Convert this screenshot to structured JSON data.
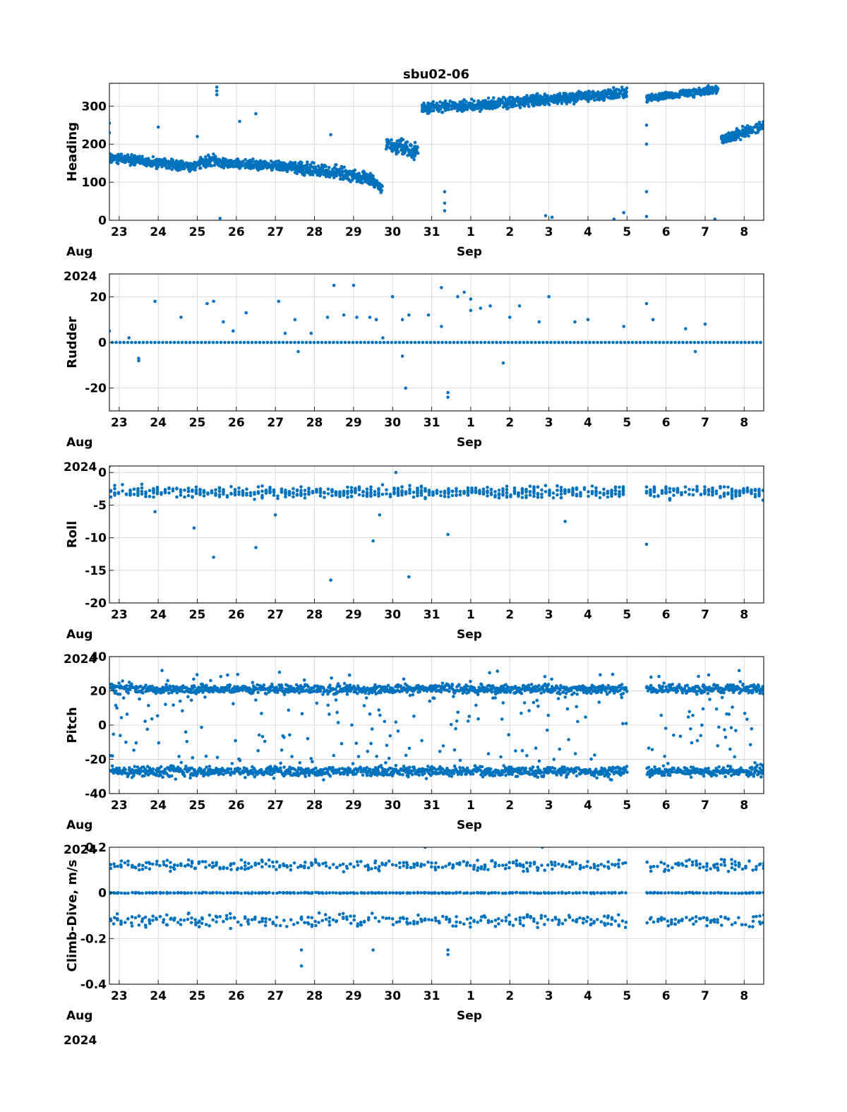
{
  "figure_title": "sbu02-06",
  "marker_color": "#0072BD",
  "x_axis": {
    "tick_labels": [
      "23",
      "24",
      "25",
      "26",
      "27",
      "28",
      "29",
      "30",
      "31",
      "1",
      "2",
      "3",
      "4",
      "5",
      "6",
      "7",
      "8"
    ],
    "month_left": "Aug",
    "month_mid": "Sep",
    "year": "2024"
  },
  "chart_data": [
    {
      "type": "scatter",
      "title": "sbu02-06",
      "ylabel": "Heading",
      "ylim": [
        0,
        360
      ],
      "yticks": [
        "0",
        "100",
        "200",
        "300"
      ],
      "xlim": [
        "2024-08-22T18:00",
        "2024-09-08T12:00"
      ],
      "grid": true,
      "series": [
        {
          "segments": [
            {
              "x": [
                "2024-08-22T18:00",
                "2024-08-25T00:00"
              ],
              "y": [
                165,
                140
              ],
              "spread": 18
            },
            {
              "x": [
                "2024-08-25T00:00",
                "2024-08-25T12:00"
              ],
              "y": [
                150,
                160
              ],
              "spread": 20
            },
            {
              "x": [
                "2024-08-25T12:00",
                "2024-08-27T12:00"
              ],
              "y": [
                150,
                140
              ],
              "spread": 18
            },
            {
              "x": [
                "2024-08-27T12:00",
                "2024-08-29T12:00"
              ],
              "y": [
                140,
                110
              ],
              "spread": 25
            },
            {
              "x": [
                "2024-08-29T08:00",
                "2024-08-29T18:00"
              ],
              "y": [
                105,
                85
              ],
              "spread": 20
            },
            {
              "x": [
                "2024-08-29T20:00",
                "2024-08-30T16:00"
              ],
              "y": [
                200,
                180
              ],
              "spread": 30
            },
            {
              "x": [
                "2024-08-30T18:00",
                "2024-09-01T12:00"
              ],
              "y": [
                295,
                305
              ],
              "spread": 20
            },
            {
              "x": [
                "2024-09-01T12:00",
                "2024-09-05T00:00"
              ],
              "y": [
                305,
                335
              ],
              "spread": 20
            },
            {
              "x": [
                "2024-09-05T12:00",
                "2024-09-07T08:00"
              ],
              "y": [
                320,
                345
              ],
              "spread": 15
            },
            {
              "x": [
                "2024-09-07T10:00",
                "2024-09-08T12:00"
              ],
              "y": [
                210,
                250
              ],
              "spread": 20
            }
          ],
          "outliers": [
            {
              "x": "2024-08-25T12:00",
              "y": 340
            },
            {
              "x": "2024-08-25T12:00",
              "y": 330
            },
            {
              "x": "2024-08-25T12:00",
              "y": 350
            },
            {
              "x": "2024-08-25T14:00",
              "y": 5
            },
            {
              "x": "2024-08-26T02:00",
              "y": 260
            },
            {
              "x": "2024-08-26T12:00",
              "y": 280
            },
            {
              "x": "2024-08-24T00:00",
              "y": 245
            },
            {
              "x": "2024-08-28T10:00",
              "y": 225
            },
            {
              "x": "2024-08-25T00:00",
              "y": 220
            },
            {
              "x": "2024-08-31T08:00",
              "y": 75
            },
            {
              "x": "2024-08-31T08:00",
              "y": 45
            },
            {
              "x": "2024-08-31T08:00",
              "y": 25
            },
            {
              "x": "2024-09-02T22:00",
              "y": 12
            },
            {
              "x": "2024-09-03T02:00",
              "y": 8
            },
            {
              "x": "2024-09-04T16:00",
              "y": 3
            },
            {
              "x": "2024-09-04T22:00",
              "y": 20
            },
            {
              "x": "2024-09-05T12:00",
              "y": 250
            },
            {
              "x": "2024-09-05T12:00",
              "y": 200
            },
            {
              "x": "2024-09-05T12:00",
              "y": 75
            },
            {
              "x": "2024-09-05T12:00",
              "y": 10
            },
            {
              "x": "2024-09-07T06:00",
              "y": 3
            },
            {
              "x": "2024-08-22T18:00",
              "y": 255
            },
            {
              "x": "2024-08-22T18:00",
              "y": 230
            }
          ]
        }
      ]
    },
    {
      "type": "scatter",
      "ylabel": "Rudder",
      "ylim": [
        -30,
        30
      ],
      "yticks": [
        "-20",
        "0",
        "20"
      ],
      "xlim": [
        "2024-08-22T18:00",
        "2024-09-08T12:00"
      ],
      "grid": true,
      "series": [
        {
          "baseline": 0,
          "outliers": [
            {
              "x": "2024-08-22T18:00",
              "y": 5
            },
            {
              "x": "2024-08-23T06:00",
              "y": 2
            },
            {
              "x": "2024-08-23T12:00",
              "y": -7
            },
            {
              "x": "2024-08-23T12:00",
              "y": -8
            },
            {
              "x": "2024-08-23T22:00",
              "y": 18
            },
            {
              "x": "2024-08-24T14:00",
              "y": 11
            },
            {
              "x": "2024-08-25T06:00",
              "y": 17
            },
            {
              "x": "2024-08-25T10:00",
              "y": 18
            },
            {
              "x": "2024-08-25T16:00",
              "y": 9
            },
            {
              "x": "2024-08-25T22:00",
              "y": 5
            },
            {
              "x": "2024-08-26T06:00",
              "y": 13
            },
            {
              "x": "2024-08-27T02:00",
              "y": 18
            },
            {
              "x": "2024-08-27T06:00",
              "y": 4
            },
            {
              "x": "2024-08-27T12:00",
              "y": 10
            },
            {
              "x": "2024-08-27T14:00",
              "y": -4
            },
            {
              "x": "2024-08-27T22:00",
              "y": 4
            },
            {
              "x": "2024-08-28T08:00",
              "y": 11
            },
            {
              "x": "2024-08-28T12:00",
              "y": 25
            },
            {
              "x": "2024-08-28T18:00",
              "y": 12
            },
            {
              "x": "2024-08-29T00:00",
              "y": 25
            },
            {
              "x": "2024-08-29T02:00",
              "y": 11
            },
            {
              "x": "2024-08-29T10:00",
              "y": 11
            },
            {
              "x": "2024-08-29T14:00",
              "y": 10
            },
            {
              "x": "2024-08-29T18:00",
              "y": 2
            },
            {
              "x": "2024-08-30T00:00",
              "y": 20
            },
            {
              "x": "2024-08-30T06:00",
              "y": 10
            },
            {
              "x": "2024-08-30T10:00",
              "y": 12
            },
            {
              "x": "2024-08-30T06:00",
              "y": -6
            },
            {
              "x": "2024-08-30T08:00",
              "y": -20
            },
            {
              "x": "2024-08-30T22:00",
              "y": 12
            },
            {
              "x": "2024-08-31T06:00",
              "y": 24
            },
            {
              "x": "2024-08-31T06:00",
              "y": 7
            },
            {
              "x": "2024-08-31T10:00",
              "y": -22
            },
            {
              "x": "2024-08-31T10:00",
              "y": -24
            },
            {
              "x": "2024-08-31T16:00",
              "y": 20
            },
            {
              "x": "2024-08-31T20:00",
              "y": 22
            },
            {
              "x": "2024-09-01T00:00",
              "y": 19
            },
            {
              "x": "2024-09-01T00:00",
              "y": 14
            },
            {
              "x": "2024-09-01T06:00",
              "y": 15
            },
            {
              "x": "2024-09-01T12:00",
              "y": 16
            },
            {
              "x": "2024-09-01T20:00",
              "y": -9
            },
            {
              "x": "2024-09-02T00:00",
              "y": 11
            },
            {
              "x": "2024-09-02T06:00",
              "y": 16
            },
            {
              "x": "2024-09-02T18:00",
              "y": 9
            },
            {
              "x": "2024-09-03T00:00",
              "y": 20
            },
            {
              "x": "2024-09-03T16:00",
              "y": 9
            },
            {
              "x": "2024-09-04T00:00",
              "y": 10
            },
            {
              "x": "2024-09-04T22:00",
              "y": 7
            },
            {
              "x": "2024-09-05T12:00",
              "y": 17
            },
            {
              "x": "2024-09-05T16:00",
              "y": 10
            },
            {
              "x": "2024-09-06T12:00",
              "y": 6
            },
            {
              "x": "2024-09-06T18:00",
              "y": -4
            },
            {
              "x": "2024-09-07T00:00",
              "y": 8
            }
          ]
        }
      ]
    },
    {
      "type": "scatter",
      "ylabel": "Roll",
      "ylim": [
        -20,
        1
      ],
      "yticks": [
        "-20",
        "-15",
        "-10",
        "-5",
        "0"
      ],
      "xlim": [
        "2024-08-22T18:00",
        "2024-09-08T12:00"
      ],
      "grid": true,
      "series": [
        {
          "band": {
            "center": -3,
            "spread": 1.3
          },
          "gaps": [
            [
              "2024-09-05T00:00",
              "2024-09-05T12:00"
            ]
          ],
          "outliers": [
            {
              "x": "2024-08-22T18:00",
              "y": 1
            },
            {
              "x": "2024-08-23T22:00",
              "y": -6
            },
            {
              "x": "2024-08-24T22:00",
              "y": -8.5
            },
            {
              "x": "2024-08-25T10:00",
              "y": -13
            },
            {
              "x": "2024-08-26T12:00",
              "y": -11.5
            },
            {
              "x": "2024-08-28T10:00",
              "y": -16.5
            },
            {
              "x": "2024-08-29T12:00",
              "y": -10.5
            },
            {
              "x": "2024-08-30T10:00",
              "y": -16
            },
            {
              "x": "2024-08-31T10:00",
              "y": -9.5
            },
            {
              "x": "2024-09-03T10:00",
              "y": -7.5
            },
            {
              "x": "2024-09-05T12:00",
              "y": -11
            },
            {
              "x": "2024-08-30T02:00",
              "y": 0
            },
            {
              "x": "2024-08-29T16:00",
              "y": -6.5
            },
            {
              "x": "2024-08-27T00:00",
              "y": -6.5
            }
          ]
        }
      ]
    },
    {
      "type": "scatter",
      "ylabel": "Pitch",
      "ylim": [
        -40,
        40
      ],
      "yticks": [
        "-40",
        "-20",
        "0",
        "20",
        "40"
      ],
      "xlim": [
        "2024-08-22T18:00",
        "2024-09-08T12:00"
      ],
      "grid": true,
      "series": [
        {
          "bands": [
            {
              "center": 21,
              "spread": 4
            },
            {
              "center": -27,
              "spread": 4
            }
          ],
          "gaps": [
            [
              "2024-09-05T00:00",
              "2024-09-05T12:00"
            ]
          ],
          "scatter_between": true
        }
      ]
    },
    {
      "type": "scatter",
      "ylabel": "Climb-Dive, m/s",
      "ylim": [
        -0.4,
        0.2
      ],
      "yticks": [
        "-0.4",
        "-0.2",
        "0",
        "0.2"
      ],
      "xlim": [
        "2024-08-22T18:00",
        "2024-09-08T12:00"
      ],
      "grid": true,
      "series": [
        {
          "bands": [
            {
              "center": 0.12,
              "spread": 0.035
            },
            {
              "center": 0.0,
              "spread": 0.003
            },
            {
              "center": -0.12,
              "spread": 0.04
            }
          ],
          "gaps": [
            [
              "2024-09-05T00:00",
              "2024-09-05T12:00"
            ]
          ],
          "outliers": [
            {
              "x": "2024-08-27T16:00",
              "y": -0.32
            },
            {
              "x": "2024-08-27T16:00",
              "y": -0.25
            },
            {
              "x": "2024-08-31T10:00",
              "y": -0.27
            },
            {
              "x": "2024-08-31T10:00",
              "y": -0.25
            },
            {
              "x": "2024-08-30T20:00",
              "y": 0.2
            },
            {
              "x": "2024-09-02T20:00",
              "y": 0.2
            },
            {
              "x": "2024-08-29T12:00",
              "y": -0.25
            }
          ]
        }
      ]
    }
  ]
}
